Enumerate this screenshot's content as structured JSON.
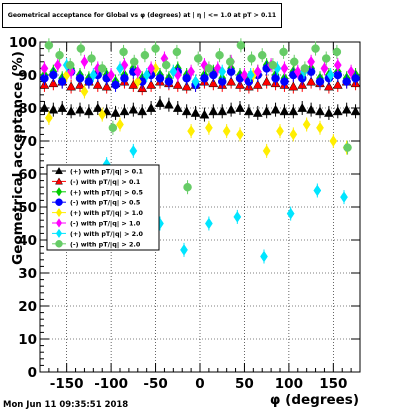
{
  "title": "Geometrical acceptance for Global vs φ (degrees) at | η | <= 1.0 at pT > 0.11",
  "footer": "Mon Jun 11 09:35:51 2018",
  "chart_data": {
    "type": "scatter",
    "title": "Geometrical acceptance for Global vs φ (degrees) at | η | <= 1.0 at pT > 0.11",
    "xlabel": "φ (degrees)",
    "ylabel": "Geometrical acceptance (%)",
    "xlim": [
      -180,
      180
    ],
    "ylim": [
      0,
      100
    ],
    "xticks": [
      -150,
      -100,
      -50,
      0,
      50,
      100,
      150
    ],
    "yticks": [
      0,
      10,
      20,
      30,
      40,
      50,
      60,
      70,
      80,
      90,
      100
    ],
    "grid": true,
    "legend_position": "center-left",
    "series": [
      {
        "name": "(+) with pT/|q| > 0.1",
        "color": "#000000",
        "marker": "triangle",
        "x": [
          -175,
          -165,
          -155,
          -145,
          -135,
          -125,
          -115,
          -105,
          -95,
          -85,
          -75,
          -65,
          -55,
          -45,
          -35,
          -25,
          -15,
          -5,
          5,
          15,
          25,
          35,
          45,
          55,
          65,
          75,
          85,
          95,
          105,
          115,
          125,
          135,
          145,
          155,
          165,
          175
        ],
        "y": [
          80,
          79.5,
          80,
          79,
          79.5,
          79,
          80,
          79,
          78.5,
          79,
          79.5,
          79,
          80,
          81.5,
          81,
          80,
          79,
          78.5,
          78,
          79,
          79,
          79.5,
          80,
          79,
          78.5,
          79,
          79.5,
          79,
          79,
          80,
          79.5,
          79,
          78.5,
          79,
          79.5,
          79
        ]
      },
      {
        "name": "(-) with pT/|q| > 0.1",
        "color": "#ff0000",
        "marker": "triangle",
        "x": [
          -175,
          -165,
          -155,
          -145,
          -135,
          -125,
          -115,
          -105,
          -95,
          -85,
          -75,
          -65,
          -55,
          -45,
          -35,
          -25,
          -15,
          -5,
          5,
          15,
          25,
          35,
          45,
          55,
          65,
          75,
          85,
          95,
          105,
          115,
          125,
          135,
          145,
          155,
          165,
          175
        ],
        "y": [
          87,
          87.5,
          88,
          86.5,
          87,
          88,
          87,
          86.5,
          87.5,
          88,
          87,
          86,
          87,
          88,
          87.5,
          87,
          86.5,
          87,
          88,
          87.5,
          87,
          88,
          87,
          86.5,
          87,
          88,
          87.5,
          87,
          86.5,
          87,
          88,
          87.5,
          86.5,
          87,
          88,
          87.5
        ]
      },
      {
        "name": "(+) with pT/|q| > 0.5",
        "color": "#00cc00",
        "marker": "diamond",
        "x": [
          -175,
          -165,
          -155,
          -145,
          -135,
          -125,
          -115,
          -105,
          -95,
          -85,
          -75,
          -65,
          -55,
          -45,
          -35,
          -25,
          -15,
          -5,
          5,
          15,
          25,
          35,
          45,
          55,
          65,
          75,
          85,
          95,
          105,
          115,
          125,
          135,
          145,
          155,
          165,
          175
        ],
        "y": [
          90,
          91,
          89,
          92,
          90,
          89,
          91,
          90,
          88,
          90,
          92,
          89,
          91,
          90,
          89,
          92,
          90,
          88,
          90,
          91,
          89,
          92,
          90,
          89,
          91,
          93,
          90,
          89,
          91,
          90,
          92,
          89,
          90,
          91,
          89,
          90
        ]
      },
      {
        "name": "(-) with pT/|q| > 0.5",
        "color": "#0000ff",
        "marker": "circle",
        "x": [
          -175,
          -165,
          -155,
          -145,
          -135,
          -125,
          -115,
          -105,
          -95,
          -85,
          -75,
          -65,
          -55,
          -45,
          -35,
          -25,
          -15,
          -5,
          5,
          15,
          25,
          35,
          45,
          55,
          65,
          75,
          85,
          95,
          105,
          115,
          125,
          135,
          145,
          155,
          165,
          175
        ],
        "y": [
          89,
          90,
          88,
          91,
          89,
          88,
          90,
          89,
          87,
          89,
          91,
          88,
          90,
          89,
          88,
          91,
          89,
          87,
          89,
          90,
          88,
          91,
          89,
          88,
          90,
          92,
          89,
          88,
          90,
          89,
          91,
          88,
          89,
          90,
          88,
          89
        ]
      },
      {
        "name": "(+) with pT/|q| > 1.0",
        "color": "#ffee00",
        "marker": "diamond",
        "x": [
          -170,
          -150,
          -130,
          -110,
          -90,
          -70,
          -50,
          -30,
          -10,
          10,
          30,
          45,
          60,
          75,
          90,
          105,
          120,
          135,
          150,
          165
        ],
        "y": [
          77,
          90,
          85,
          78,
          75,
          88,
          92,
          91,
          73,
          74,
          73,
          72,
          90,
          67,
          73,
          72,
          75,
          74,
          70,
          68
        ]
      },
      {
        "name": "(-) with pT/|q| > 1.0",
        "color": "#ff00ff",
        "marker": "diamond",
        "x": [
          -175,
          -160,
          -145,
          -130,
          -115,
          -100,
          -85,
          -70,
          -55,
          -40,
          -25,
          -10,
          5,
          20,
          35,
          50,
          65,
          80,
          95,
          110,
          125,
          140,
          155,
          170
        ],
        "y": [
          92,
          93,
          91,
          94,
          92,
          90,
          93,
          91,
          92,
          95,
          90,
          91,
          93,
          92,
          94,
          90,
          91,
          93,
          92,
          91,
          94,
          92,
          93,
          91
        ]
      },
      {
        "name": "(+) with pT/|q| > 2.0",
        "color": "#00e5ff",
        "marker": "diamond",
        "x": [
          -165,
          -150,
          -135,
          -120,
          -105,
          -90,
          -75,
          -60,
          -45,
          -30,
          -18,
          -5,
          10,
          25,
          42,
          57,
          72,
          87,
          102,
          117,
          132,
          147,
          162
        ],
        "y": [
          60,
          93,
          58,
          90,
          63,
          92,
          67,
          90,
          45,
          91,
          37,
          88,
          45,
          91,
          47,
          90,
          35,
          92,
          48,
          91,
          55,
          90,
          53
        ]
      },
      {
        "name": "(-) with pT/|q| > 2.0",
        "color": "#66cc66",
        "marker": "circle",
        "x": [
          -170,
          -158,
          -146,
          -134,
          -122,
          -110,
          -98,
          -86,
          -74,
          -62,
          -50,
          -38,
          -26,
          -14,
          -2,
          10,
          22,
          34,
          46,
          58,
          70,
          82,
          94,
          106,
          118,
          130,
          142,
          154,
          166
        ],
        "y": [
          99,
          96,
          93,
          98,
          95,
          92,
          74,
          97,
          94,
          96,
          98,
          93,
          97,
          56,
          95,
          92,
          96,
          94,
          99,
          95,
          96,
          93,
          97,
          94,
          92,
          98,
          95,
          97,
          68
        ]
      }
    ]
  }
}
